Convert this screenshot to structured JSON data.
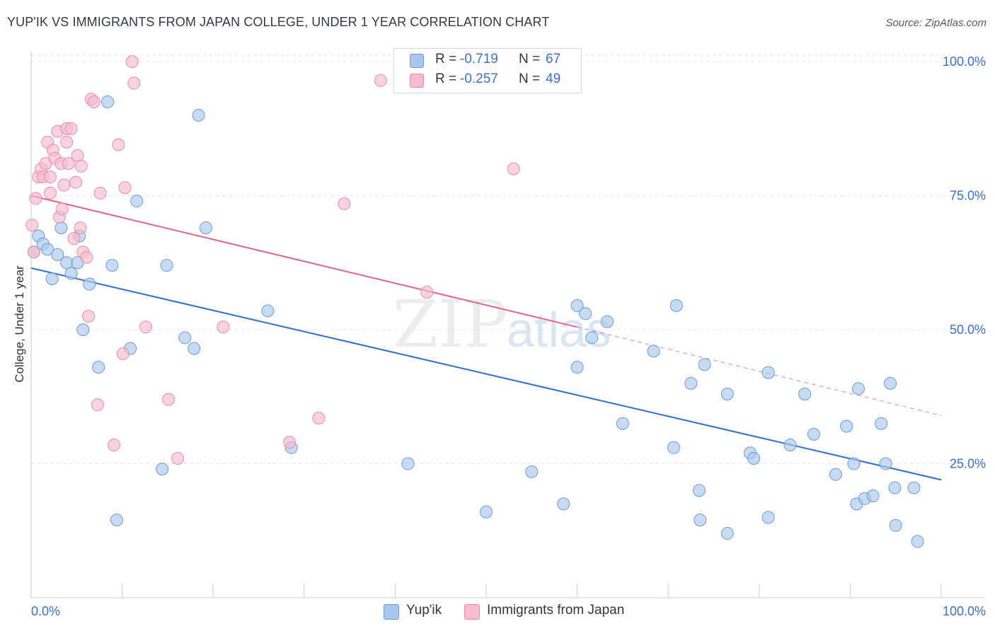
{
  "title": "YUP'IK VS IMMIGRANTS FROM JAPAN COLLEGE, UNDER 1 YEAR CORRELATION CHART",
  "source": "Source: ZipAtlas.com",
  "watermark": {
    "zip": "ZIP",
    "atlas": "atlas"
  },
  "colors": {
    "blue_fill": "#a9c7ee",
    "blue_stroke": "#6d9ad8",
    "blue_line": "#2e6fd0",
    "pink_fill": "#f7bccd",
    "pink_stroke": "#e98aa8",
    "pink_line": "#e0658d",
    "axis_text": "#3b6fd1",
    "grid": "#e3e6ea"
  },
  "legend_top": {
    "rows": [
      {
        "r_label": "R =",
        "r_value": "-0.719",
        "n_label": "N =",
        "n_value": "67"
      },
      {
        "r_label": "R =",
        "r_value": "-0.257",
        "n_label": "N =",
        "n_value": "49"
      }
    ]
  },
  "legend_bottom": {
    "items": [
      "Yup'ik",
      "Immigrants from Japan"
    ]
  },
  "chart_data": {
    "type": "scatter",
    "title": "YUP'IK VS IMMIGRANTS FROM JAPAN COLLEGE, UNDER 1 YEAR CORRELATION CHART",
    "xlabel": "",
    "ylabel": "College, Under 1 year",
    "xlim": [
      0,
      100
    ],
    "ylim": [
      0,
      102
    ],
    "x_tick_labels": [
      "0.0%",
      "100.0%"
    ],
    "y_ticks": [
      25,
      50,
      75,
      100
    ],
    "y_tick_labels": [
      "25.0%",
      "50.0%",
      "75.0%",
      "100.0%"
    ],
    "grid": true,
    "legend": "top-center",
    "series": [
      {
        "name": "Yup'ik",
        "R": -0.719,
        "N": 67,
        "trend": {
          "x": [
            0,
            100
          ],
          "y": [
            61.5,
            22.0
          ],
          "dashed_x": [
            100,
            100
          ]
        },
        "points": [
          [
            0.3,
            64.5
          ],
          [
            0.8,
            67.5
          ],
          [
            1.3,
            66.0
          ],
          [
            1.8,
            65.0
          ],
          [
            2.3,
            59.5
          ],
          [
            2.9,
            64.0
          ],
          [
            3.3,
            69.0
          ],
          [
            3.9,
            62.5
          ],
          [
            4.4,
            60.5
          ],
          [
            5.3,
            67.5
          ],
          [
            5.1,
            62.5
          ],
          [
            5.7,
            50.0
          ],
          [
            6.4,
            58.5
          ],
          [
            7.4,
            43.0
          ],
          [
            8.4,
            92.5
          ],
          [
            8.9,
            62.0
          ],
          [
            9.4,
            14.5
          ],
          [
            10.9,
            46.5
          ],
          [
            11.6,
            74.0
          ],
          [
            14.4,
            24.0
          ],
          [
            14.9,
            62.0
          ],
          [
            16.9,
            48.5
          ],
          [
            17.9,
            46.5
          ],
          [
            18.4,
            90.0
          ],
          [
            19.2,
            69.0
          ],
          [
            26.0,
            53.5
          ],
          [
            28.6,
            28.0
          ],
          [
            41.4,
            25.0
          ],
          [
            50.0,
            16.0
          ],
          [
            55.0,
            23.5
          ],
          [
            58.5,
            17.5
          ],
          [
            60.0,
            43.0
          ],
          [
            60.0,
            54.5
          ],
          [
            60.9,
            53.0
          ],
          [
            61.6,
            48.5
          ],
          [
            63.3,
            51.5
          ],
          [
            65.0,
            32.5
          ],
          [
            68.4,
            46.0
          ],
          [
            70.6,
            28.0
          ],
          [
            70.9,
            54.5
          ],
          [
            72.5,
            40.0
          ],
          [
            73.5,
            14.5
          ],
          [
            73.4,
            20.0
          ],
          [
            74.0,
            43.5
          ],
          [
            76.5,
            38.0
          ],
          [
            76.5,
            12.0
          ],
          [
            79.0,
            27.0
          ],
          [
            79.4,
            26.0
          ],
          [
            81.0,
            15.0
          ],
          [
            81.0,
            42.0
          ],
          [
            83.4,
            28.5
          ],
          [
            85.0,
            38.0
          ],
          [
            86.0,
            30.5
          ],
          [
            88.4,
            23.0
          ],
          [
            89.6,
            32.0
          ],
          [
            90.4,
            25.0
          ],
          [
            90.7,
            17.5
          ],
          [
            90.9,
            39.0
          ],
          [
            91.6,
            18.5
          ],
          [
            92.5,
            19.0
          ],
          [
            93.4,
            32.5
          ],
          [
            93.9,
            25.0
          ],
          [
            94.4,
            40.0
          ],
          [
            94.9,
            20.5
          ],
          [
            95.0,
            13.5
          ],
          [
            97.0,
            20.5
          ],
          [
            97.4,
            10.5
          ]
        ]
      },
      {
        "name": "Immigrants from Japan",
        "R": -0.257,
        "N": 49,
        "trend": {
          "x": [
            0,
            60
          ],
          "y": [
            75.0,
            50.5
          ],
          "dashed_x": [
            60,
            100
          ],
          "dashed_y": [
            50.5,
            34.0
          ]
        },
        "points": [
          [
            0.1,
            69.5
          ],
          [
            0.3,
            64.5
          ],
          [
            0.5,
            74.5
          ],
          [
            0.8,
            78.5
          ],
          [
            1.1,
            80.0
          ],
          [
            1.3,
            78.5
          ],
          [
            1.6,
            81.0
          ],
          [
            1.8,
            85.0
          ],
          [
            2.1,
            75.5
          ],
          [
            2.1,
            78.5
          ],
          [
            2.4,
            83.5
          ],
          [
            2.6,
            82.0
          ],
          [
            2.9,
            87.0
          ],
          [
            3.1,
            71.0
          ],
          [
            3.3,
            81.0
          ],
          [
            3.4,
            72.5
          ],
          [
            3.6,
            77.0
          ],
          [
            3.9,
            87.5
          ],
          [
            3.9,
            85.0
          ],
          [
            4.1,
            81.0
          ],
          [
            4.4,
            87.5
          ],
          [
            4.7,
            67.0
          ],
          [
            4.9,
            77.5
          ],
          [
            5.1,
            82.5
          ],
          [
            5.4,
            69.0
          ],
          [
            5.5,
            80.5
          ],
          [
            5.7,
            64.5
          ],
          [
            6.1,
            63.5
          ],
          [
            6.3,
            52.5
          ],
          [
            6.6,
            93.0
          ],
          [
            6.9,
            92.5
          ],
          [
            7.3,
            36.0
          ],
          [
            7.6,
            75.5
          ],
          [
            9.1,
            28.5
          ],
          [
            9.6,
            84.5
          ],
          [
            10.1,
            45.5
          ],
          [
            10.3,
            76.5
          ],
          [
            11.1,
            100.0
          ],
          [
            11.3,
            96.0
          ],
          [
            12.6,
            50.5
          ],
          [
            15.1,
            37.0
          ],
          [
            16.1,
            26.0
          ],
          [
            21.1,
            50.5
          ],
          [
            28.4,
            29.0
          ],
          [
            31.6,
            33.5
          ],
          [
            34.4,
            73.5
          ],
          [
            38.4,
            96.5
          ],
          [
            43.5,
            57.0
          ],
          [
            53.0,
            80.0
          ]
        ]
      }
    ]
  }
}
